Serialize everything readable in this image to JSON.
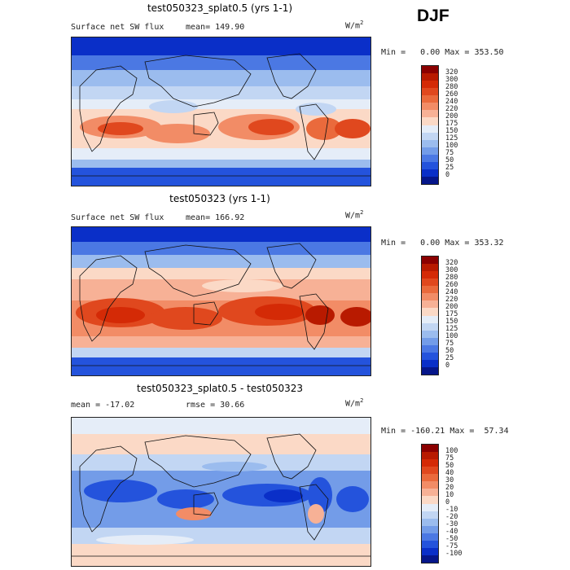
{
  "season": "DJF",
  "panels": [
    {
      "id": "p1",
      "title": "test050323_splat0.5 (yrs 1-1)",
      "left_label": "Surface net SW flux",
      "right_label": "mean= 149.90",
      "units_base": "W/m",
      "units_exp": "2",
      "min_label": "Min =",
      "min_value": "0.00",
      "max_label": "Max =",
      "max_value": "353.50",
      "colorbar": {
        "ticks": [
          "320",
          "300",
          "280",
          "260",
          "240",
          "220",
          "200",
          "175",
          "150",
          "125",
          "100",
          "75",
          "50",
          "25",
          "0"
        ],
        "colors": [
          "#8b0000",
          "#b81a00",
          "#d42a06",
          "#e0481e",
          "#ea6a3c",
          "#f28c66",
          "#f7b196",
          "#fbd9c6",
          "#e5edf8",
          "#c2d6f3",
          "#9bbcee",
          "#739ce8",
          "#4b78e3",
          "#2453dc",
          "#0a2fc8",
          "#06168a"
        ]
      }
    },
    {
      "id": "p2",
      "title": "test050323 (yrs 1-1)",
      "left_label": "Surface net SW flux",
      "right_label": "mean= 166.92",
      "units_base": "W/m",
      "units_exp": "2",
      "min_label": "Min =",
      "min_value": "0.00",
      "max_label": "Max =",
      "max_value": "353.32",
      "colorbar": {
        "ticks": [
          "320",
          "300",
          "280",
          "260",
          "240",
          "220",
          "200",
          "175",
          "150",
          "125",
          "100",
          "75",
          "50",
          "25",
          "0"
        ],
        "colors": [
          "#8b0000",
          "#b81a00",
          "#d42a06",
          "#e0481e",
          "#ea6a3c",
          "#f28c66",
          "#f7b196",
          "#fbd9c6",
          "#e5edf8",
          "#c2d6f3",
          "#9bbcee",
          "#739ce8",
          "#4b78e3",
          "#2453dc",
          "#0a2fc8",
          "#06168a"
        ]
      }
    },
    {
      "id": "p3",
      "title": "test050323_splat0.5 - test050323",
      "left_label": "mean = -17.02",
      "right_label": "rmse =  30.66",
      "units_base": "W/m",
      "units_exp": "2",
      "min_label": "Min =",
      "min_value": "-160.21",
      "max_label": "Max =",
      "max_value": "57.34",
      "colorbar": {
        "ticks": [
          "100",
          "75",
          "50",
          "40",
          "30",
          "20",
          "10",
          "0",
          "-10",
          "-20",
          "-30",
          "-40",
          "-50",
          "-75",
          "-100"
        ],
        "colors": [
          "#8b0000",
          "#b81a00",
          "#d42a06",
          "#e0481e",
          "#ea6a3c",
          "#f28c66",
          "#f7b196",
          "#fbd9c6",
          "#e5edf8",
          "#c2d6f3",
          "#9bbcee",
          "#739ce8",
          "#4b78e3",
          "#2453dc",
          "#0a2fc8",
          "#06168a"
        ]
      }
    }
  ]
}
